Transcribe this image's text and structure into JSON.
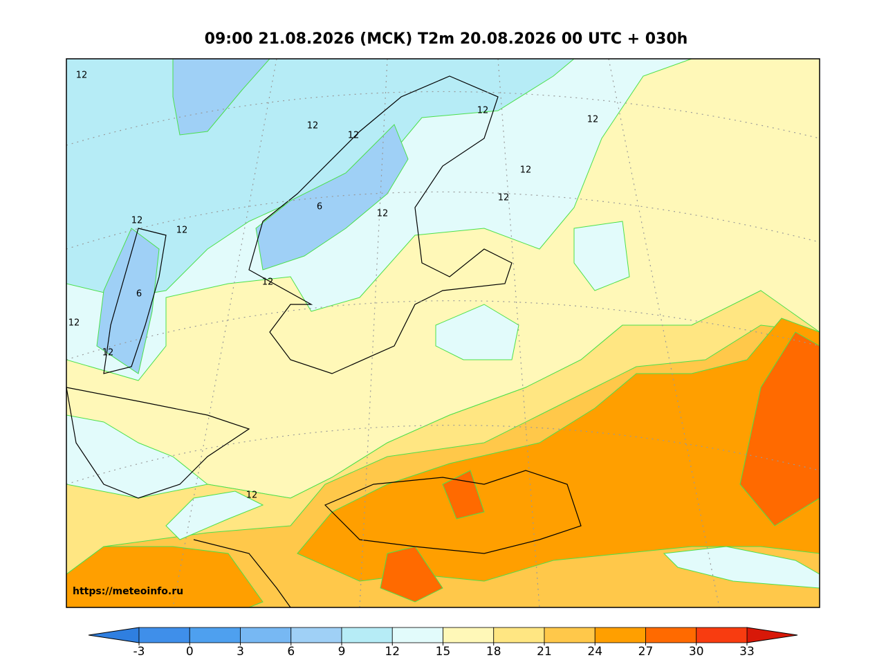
{
  "title": "09:00 21.08.2026 (МСК) T2m 20.08.2026 00 UTC + 030h",
  "source_url": "https://meteoinfo.ru",
  "colorbar": {
    "ticks": [
      -3,
      0,
      3,
      6,
      9,
      12,
      15,
      18,
      21,
      24,
      27,
      30,
      33
    ],
    "colors": [
      "#2f7fe0",
      "#3f8fea",
      "#4ea0ef",
      "#77b8f3",
      "#9fd0f6",
      "#b6ecf6",
      "#e2fbfb",
      "#fff8b8",
      "#ffe682",
      "#ffc84a",
      "#ff9f00",
      "#ff6a00",
      "#f83c10",
      "#d81808"
    ]
  },
  "contour_labels": [
    12,
    12,
    12,
    12,
    12,
    12,
    12,
    12,
    6,
    12,
    12,
    12,
    6,
    12,
    12,
    12
  ]
}
